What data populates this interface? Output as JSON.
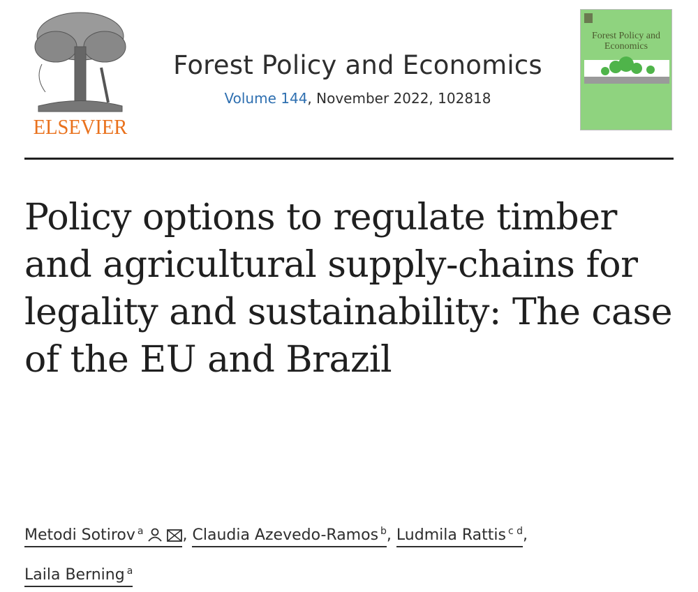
{
  "publisher": {
    "logo_text": "ELSEVIER"
  },
  "journal": {
    "name": "Forest Policy and Economics",
    "volume_link": "Volume 144",
    "issue_details": ", November 2022, 102818"
  },
  "cover": {
    "title": "Forest Policy and Economics",
    "background": "#8fd37f"
  },
  "article": {
    "title": "Policy options to regulate timber and agricultural supply-chains for legality and sustainability: The case of the EU and Brazil"
  },
  "authors": [
    {
      "name": "Metodi Sotirov",
      "affil": "a",
      "icons": [
        "person-icon",
        "envelope-icon"
      ]
    },
    {
      "name": "Claudia Azevedo-Ramos",
      "affil": "b"
    },
    {
      "name": "Ludmila Rattis",
      "affil": "c d"
    },
    {
      "name": "Laila Berning",
      "affil": "a"
    }
  ],
  "colors": {
    "link": "#2e6fb0",
    "elsevier_orange": "#e9711c"
  }
}
